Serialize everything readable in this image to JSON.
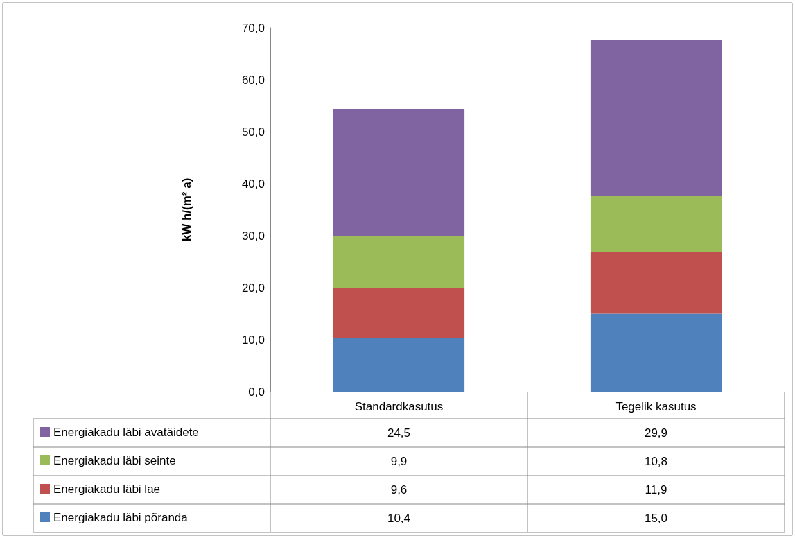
{
  "chart_data": {
    "type": "bar",
    "stacked": true,
    "ylabel": "kW h/(m² a)",
    "categories": [
      "Standardkasutus",
      "Tegelik kasutus"
    ],
    "series": [
      {
        "name": "Energiakadu läbi põranda",
        "color": "#4f81bd",
        "values": [
          10.4,
          15.0
        ],
        "value_labels": [
          "10,4",
          "15,0"
        ]
      },
      {
        "name": "Energiakadu läbi lae",
        "color": "#c0504d",
        "values": [
          9.6,
          11.9
        ],
        "value_labels": [
          "9,6",
          "11,9"
        ]
      },
      {
        "name": "Energiakadu läbi seinte",
        "color": "#9bbb59",
        "values": [
          9.9,
          10.8
        ],
        "value_labels": [
          "9,9",
          "10,8"
        ]
      },
      {
        "name": "Energiakadu läbi avatäidete",
        "color": "#8064a2",
        "values": [
          24.5,
          29.9
        ],
        "value_labels": [
          "24,5",
          "29,9"
        ]
      }
    ],
    "ylim": [
      0,
      70
    ],
    "yticks": [
      {
        "value": 0,
        "label": "0,0"
      },
      {
        "value": 10,
        "label": "10,0"
      },
      {
        "value": 20,
        "label": "20,0"
      },
      {
        "value": 30,
        "label": "30,0"
      },
      {
        "value": 40,
        "label": "40,0"
      },
      {
        "value": 50,
        "label": "50,0"
      },
      {
        "value": 60,
        "label": "60,0"
      },
      {
        "value": 70,
        "label": "70,0"
      }
    ],
    "grid": "y",
    "legend": "bottom"
  }
}
